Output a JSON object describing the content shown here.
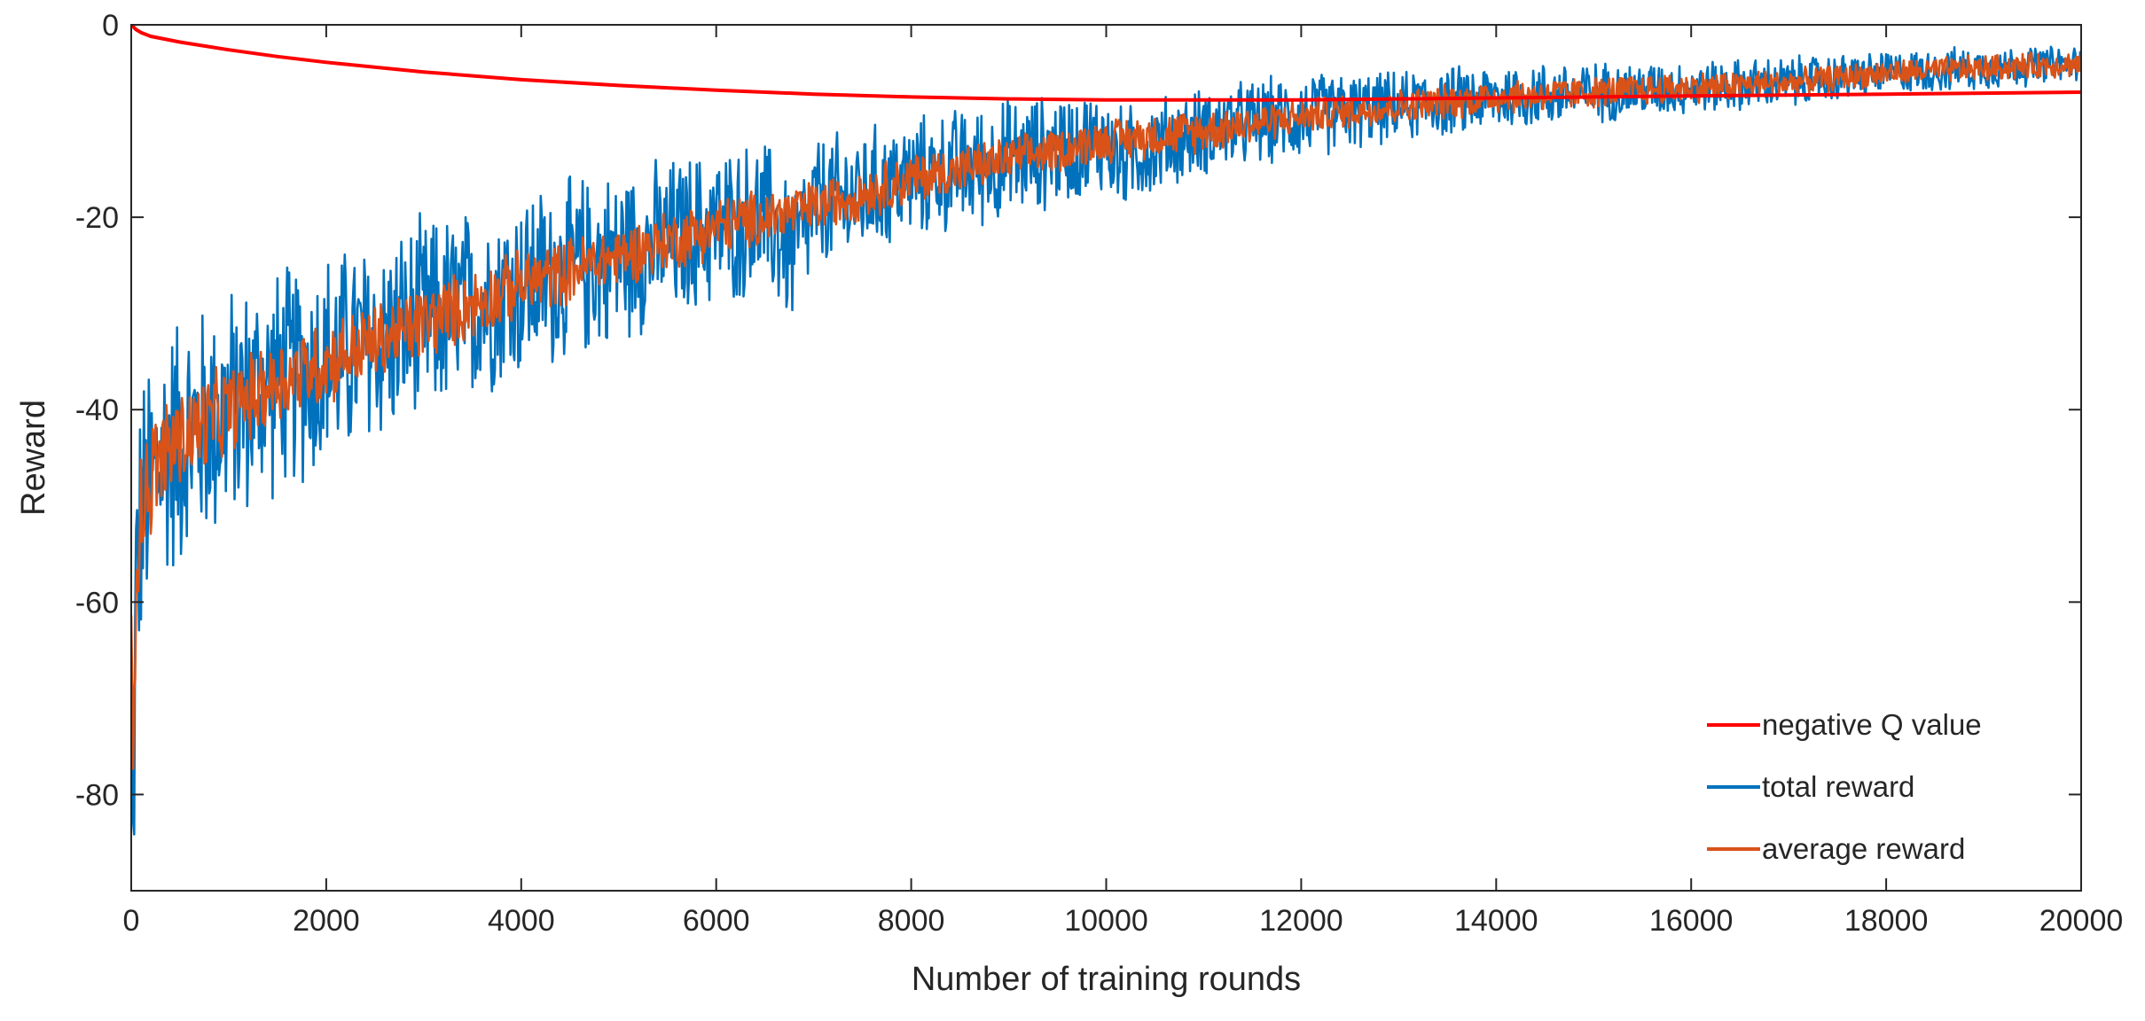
{
  "chart_data": {
    "type": "line",
    "xlabel": "Number of training rounds",
    "ylabel": "Reward",
    "xlim": [
      0,
      20000
    ],
    "ylim": [
      -90,
      0
    ],
    "xticks": [
      0,
      2000,
      4000,
      6000,
      8000,
      10000,
      12000,
      14000,
      16000,
      18000,
      20000
    ],
    "yticks": [
      0,
      -20,
      -40,
      -60,
      -80
    ],
    "xtick_labels": [
      "0",
      "2000",
      "4000",
      "6000",
      "8000",
      "10000",
      "12000",
      "14000",
      "16000",
      "18000",
      "20000"
    ],
    "ytick_labels": [
      "0",
      "-20",
      "-40",
      "-60",
      "-80"
    ],
    "grid": false,
    "legend_position": "bottom-right",
    "series": [
      {
        "name": "negative Q value",
        "color": "#ff0000",
        "x": [
          0,
          50,
          100,
          200,
          500,
          1000,
          1500,
          2000,
          3000,
          4000,
          5000,
          6000,
          7000,
          8000,
          9000,
          10000,
          11000,
          12000,
          13000,
          14000,
          15000,
          16000,
          17000,
          18000,
          19000,
          20000
        ],
        "y": [
          0,
          -0.5,
          -0.8,
          -1.2,
          -1.8,
          -2.6,
          -3.3,
          -3.9,
          -4.9,
          -5.7,
          -6.3,
          -6.8,
          -7.2,
          -7.5,
          -7.7,
          -7.8,
          -7.8,
          -7.8,
          -7.7,
          -7.6,
          -7.5,
          -7.4,
          -7.3,
          -7.2,
          -7.1,
          -7.0
        ]
      },
      {
        "name": "total reward",
        "color": "#0072bd",
        "x": [
          0,
          20,
          50,
          100,
          200,
          300,
          500,
          700,
          1000,
          1500,
          2000,
          2500,
          3000,
          3500,
          4000,
          5000,
          6000,
          6500,
          6800,
          7000,
          8000,
          9000,
          10000,
          10100,
          11000,
          12000,
          13000,
          14000,
          15000,
          16000,
          17000,
          18000,
          19000,
          20000
        ],
        "y": [
          -70,
          -86,
          -58,
          -52,
          -48,
          -45,
          -43,
          -42,
          -40,
          -37,
          -35,
          -33,
          -31,
          -29,
          -27,
          -24,
          -21,
          -20,
          -24,
          -19,
          -16,
          -14,
          -12,
          -14,
          -11,
          -9.5,
          -8.5,
          -7.5,
          -7,
          -6.5,
          -6,
          -5,
          -4.5,
          -4
        ],
        "noise_amplitude": [
          8,
          10,
          16,
          16,
          16,
          15,
          15,
          14,
          14,
          13,
          13,
          12,
          12,
          11,
          11,
          10,
          9,
          9,
          9,
          8,
          7,
          7,
          6,
          6,
          5,
          5,
          4,
          4,
          3.5,
          3,
          3,
          2.5,
          2.5,
          2
        ]
      },
      {
        "name": "average reward",
        "color": "#d95319",
        "x": [
          0,
          20,
          50,
          100,
          200,
          300,
          500,
          700,
          1000,
          1500,
          2000,
          2500,
          3000,
          3500,
          4000,
          5000,
          6000,
          7000,
          8000,
          9000,
          10000,
          11000,
          12000,
          13000,
          14000,
          15000,
          16000,
          17000,
          18000,
          19000,
          20000
        ],
        "y": [
          -65,
          -78,
          -55,
          -50,
          -47,
          -45,
          -43,
          -42,
          -40,
          -37,
          -35,
          -33,
          -31,
          -29,
          -27,
          -24,
          -21,
          -19,
          -16,
          -14,
          -12,
          -11,
          -9.5,
          -8.5,
          -7.5,
          -7,
          -6.5,
          -6,
          -5,
          -4.5,
          -4
        ],
        "noise_amplitude": [
          5,
          6,
          7,
          7,
          7,
          6,
          6,
          6,
          5,
          5,
          5,
          4.5,
          4.5,
          4,
          4,
          3.5,
          3.5,
          3,
          3,
          2.5,
          2.5,
          2.5,
          2,
          2,
          2,
          1.8,
          1.8,
          1.5,
          1.5,
          1.5,
          1.5
        ]
      }
    ]
  }
}
